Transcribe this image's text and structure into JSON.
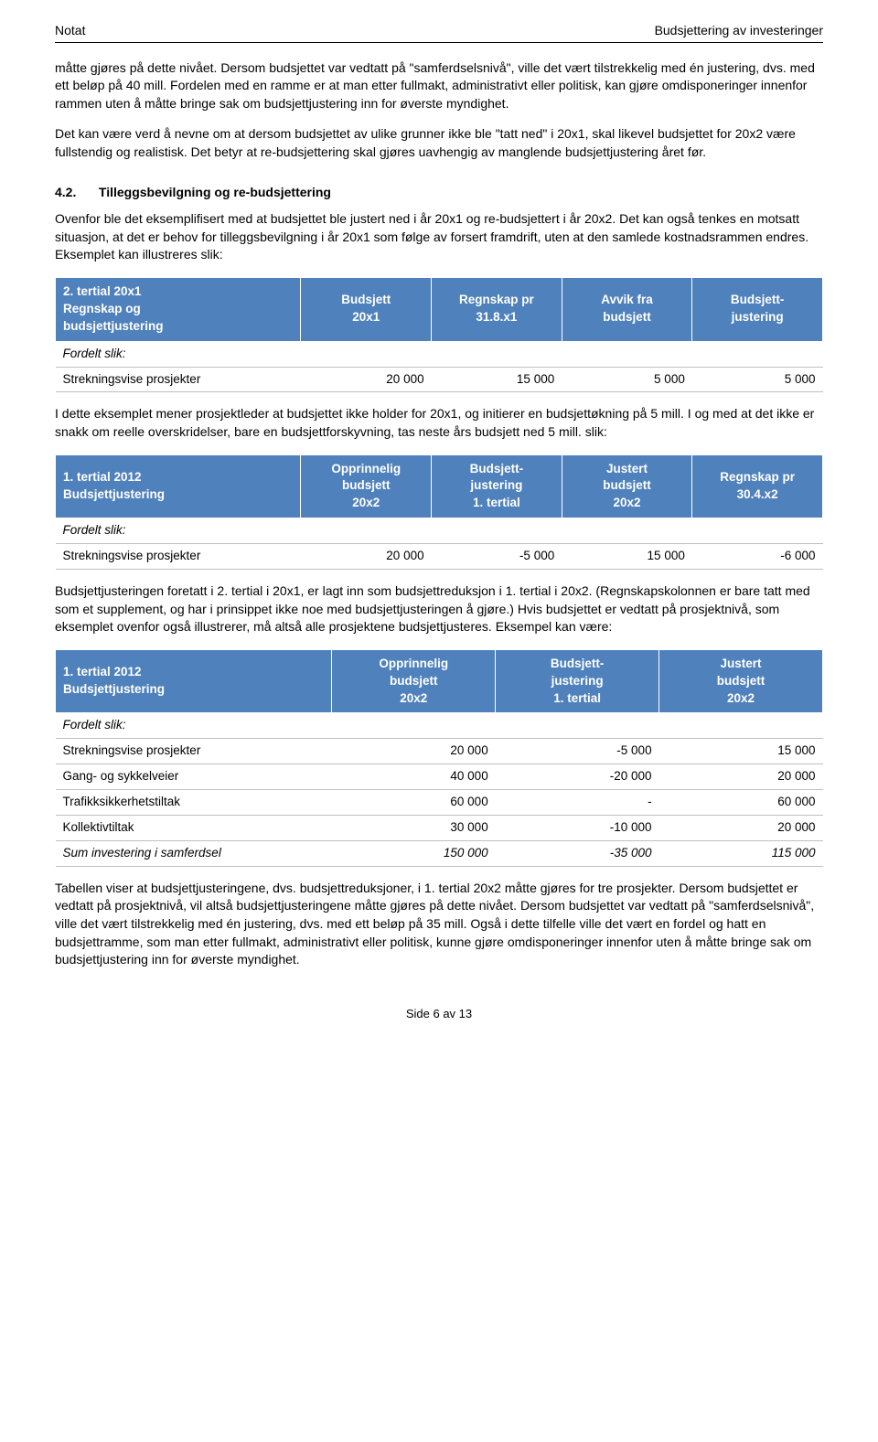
{
  "header": {
    "left": "Notat",
    "right": "Budsjettering av investeringer"
  },
  "para1": "måtte gjøres på dette nivået. Dersom budsjettet var vedtatt på \"samferdselsnivå\", ville det vært tilstrekkelig med én justering, dvs. med ett beløp på 40 mill. Fordelen med en ramme er at man etter fullmakt, administrativt eller politisk, kan gjøre omdisponeringer innenfor rammen uten å måtte bringe sak om budsjettjustering inn for øverste myndighet.",
  "para2": "Det kan være verd å nevne om at dersom budsjettet av ulike grunner ikke ble \"tatt ned\" i 20x1, skal likevel budsjettet for 20x2 være fullstendig og realistisk. Det betyr at re-budsjettering skal gjøres uavhengig av manglende budsjettjustering året før.",
  "section": {
    "number": "4.2.",
    "title": "Tilleggsbevilgning og re-budsjettering"
  },
  "para3": "Ovenfor ble det eksemplifisert med at budsjettet ble justert ned i år 20x1 og re-budsjettert i år 20x2. Det kan også tenkes en motsatt situasjon, at det er behov for tilleggsbevilgning i år 20x1 som følge av forsert framdrift, uten at den samlede kostnadsrammen endres. Eksemplet kan illustreres slik:",
  "table1": {
    "headers": [
      "2. tertial 20x1\nRegnskap og\nbudsjettjustering",
      "Budsjett\n20x1",
      "Regnskap pr\n31.8.x1",
      "Avvik fra\nbudsjett",
      "Budsjett-\njustering"
    ],
    "fordelt": "Fordelt slik:",
    "row": [
      "Strekningsvise prosjekter",
      "20 000",
      "15 000",
      "5 000",
      "5 000"
    ]
  },
  "para4": "I dette eksemplet mener prosjektleder at budsjettet ikke holder for 20x1, og initierer en budsjettøkning på 5 mill. I og med at det ikke er snakk om reelle overskridelser, bare en budsjettforskyvning, tas neste års budsjett ned 5 mill. slik:",
  "table2": {
    "headers": [
      "1. tertial 2012\nBudsjettjustering",
      "Opprinnelig\nbudsjett\n20x2",
      "Budsjett-\njustering\n1. tertial",
      "Justert\nbudsjett\n20x2",
      "Regnskap pr\n30.4.x2"
    ],
    "fordelt": "Fordelt slik:",
    "row": [
      "Strekningsvise prosjekter",
      "20 000",
      "-5 000",
      "15 000",
      "-6 000"
    ]
  },
  "para5": "Budsjettjusteringen foretatt i 2. tertial i 20x1, er lagt inn som budsjettreduksjon i 1. tertial i 20x2. (Regnskapskolonnen er bare tatt med som et supplement, og har i prinsippet ikke noe med budsjettjusteringen å gjøre.) Hvis budsjettet er vedtatt på prosjektnivå, som eksemplet ovenfor også illustrerer, må altså alle prosjektene budsjettjusteres. Eksempel kan være:",
  "table3": {
    "headers": [
      "1. tertial 2012\nBudsjettjustering",
      "Opprinnelig\nbudsjett\n20x2",
      "Budsjett-\njustering\n1. tertial",
      "Justert\nbudsjett\n20x2"
    ],
    "fordelt": "Fordelt slik:",
    "rows": [
      [
        "Strekningsvise prosjekter",
        "20 000",
        "-5 000",
        "15 000"
      ],
      [
        "Gang- og sykkelveier",
        "40 000",
        "-20 000",
        "20 000"
      ],
      [
        "Trafikksikkerhetstiltak",
        "60 000",
        "-",
        "60 000"
      ],
      [
        "Kollektivtiltak",
        "30 000",
        "-10 000",
        "20 000"
      ]
    ],
    "sum": [
      "Sum investering i samferdsel",
      "150 000",
      "-35 000",
      "115 000"
    ]
  },
  "para6": "Tabellen viser at budsjettjusteringene, dvs. budsjettreduksjoner, i 1. tertial 20x2 måtte gjøres for tre prosjekter. Dersom budsjettet er vedtatt på prosjektnivå, vil altså budsjettjusteringene måtte gjøres på dette nivået. Dersom budsjettet var vedtatt på \"samferdselsnivå\", ville det vært tilstrekkelig med én justering, dvs. med ett beløp på 35 mill. Også i dette tilfelle ville det vært en fordel og hatt en budsjettramme, som man etter fullmakt, administrativt eller politisk, kunne gjøre omdisponeringer innenfor uten å måtte bringe sak om budsjettjustering inn for øverste myndighet.",
  "footer": "Side 6 av 13"
}
